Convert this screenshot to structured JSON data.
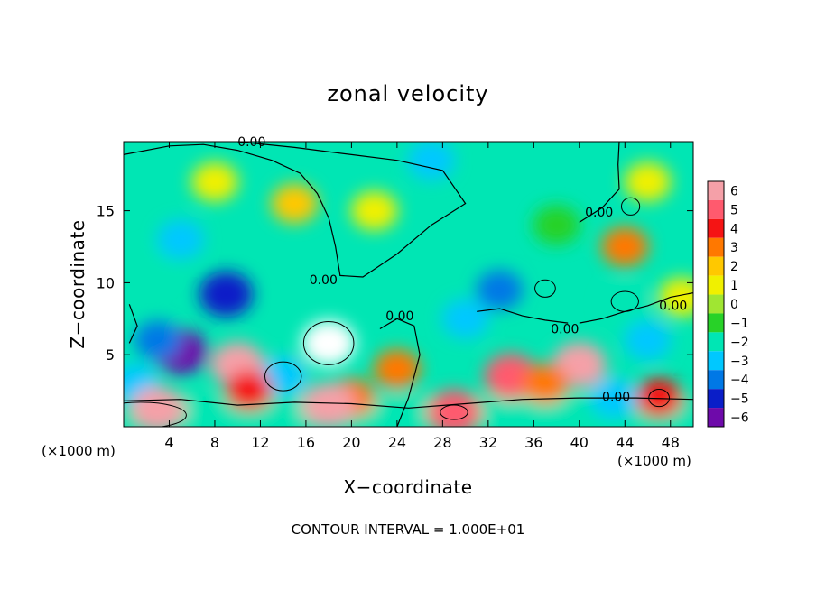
{
  "chart_data": {
    "type": "heatmap",
    "title": "zonal velocity",
    "xlabel": "X−coordinate",
    "ylabel": "Z−coordinate",
    "x_unit_left": "(×1000 m)",
    "x_unit_right": "(×1000 m)",
    "x_range": [
      0,
      50
    ],
    "y_range": [
      0,
      19.8
    ],
    "x_ticks": [
      4,
      8,
      12,
      16,
      20,
      24,
      28,
      32,
      36,
      40,
      44,
      48
    ],
    "x_tick_labels": [
      "4",
      "8",
      "12",
      "16",
      "20",
      "24",
      "28",
      "32",
      "36",
      "40",
      "44",
      "48"
    ],
    "y_ticks": [
      5,
      10,
      15
    ],
    "y_tick_labels": [
      "5",
      "10",
      "15"
    ],
    "colorbar": {
      "levels": [
        6,
        5,
        4,
        3,
        2,
        1,
        0,
        -1,
        -2,
        -3,
        -4,
        -5,
        -6
      ],
      "labels": [
        "6",
        "5",
        "4",
        "3",
        "2",
        "1",
        "0",
        "−1",
        "−2",
        "−3",
        "−4",
        "−5",
        "−6"
      ],
      "colors": [
        "#f5a0a8",
        "#ff5a6e",
        "#f51414",
        "#ff7800",
        "#ffc800",
        "#f0f000",
        "#a0e632",
        "#28d228",
        "#00e6b4",
        "#00c8ff",
        "#0078e6",
        "#0a1ec8",
        "#6e0aaa"
      ]
    },
    "contour_labels": [
      "0.00",
      "0.00",
      "0.00",
      "0.00",
      "0.00",
      "0.00",
      "0.00"
    ],
    "blobs": [
      {
        "x": 18,
        "z": 5.8,
        "v": -7
      },
      {
        "x": 14,
        "z": 3.5,
        "v": -3
      },
      {
        "x": 10,
        "z": 4.3,
        "v": 6
      },
      {
        "x": 11,
        "z": 2.5,
        "v": 4
      },
      {
        "x": 9,
        "z": 9.2,
        "v": -5
      },
      {
        "x": 5,
        "z": 5.2,
        "v": -6
      },
      {
        "x": 3,
        "z": 6.0,
        "v": -4
      },
      {
        "x": 5,
        "z": 13,
        "v": -3
      },
      {
        "x": 2,
        "z": 11,
        "v": -2
      },
      {
        "x": 15,
        "z": 15.5,
        "v": 1.5
      },
      {
        "x": 22,
        "z": 15,
        "v": 1
      },
      {
        "x": 27,
        "z": 18.5,
        "v": -3
      },
      {
        "x": 24,
        "z": 4,
        "v": 3
      },
      {
        "x": 20,
        "z": 2,
        "v": 3
      },
      {
        "x": 33,
        "z": 9.5,
        "v": -4
      },
      {
        "x": 30,
        "z": 7.5,
        "v": -3
      },
      {
        "x": 40,
        "z": 4.3,
        "v": 6
      },
      {
        "x": 34,
        "z": 3.5,
        "v": 5
      },
      {
        "x": 37,
        "z": 3,
        "v": 3
      },
      {
        "x": 44,
        "z": 8.5,
        "v": -2
      },
      {
        "x": 44,
        "z": 12.5,
        "v": 3
      },
      {
        "x": 49,
        "z": 9,
        "v": 1
      },
      {
        "x": 46,
        "z": 6,
        "v": -3
      },
      {
        "x": 47,
        "z": 2,
        "v": 4
      },
      {
        "x": 43,
        "z": 2,
        "v": -3
      },
      {
        "x": 1,
        "z": 3,
        "v": -3
      },
      {
        "x": 3,
        "z": 1.2,
        "v": 6
      },
      {
        "x": 29,
        "z": 1,
        "v": 5
      },
      {
        "x": 18,
        "z": 1.5,
        "v": 6
      },
      {
        "x": 38,
        "z": 14,
        "v": -1
      },
      {
        "x": 8,
        "z": 17,
        "v": 0.8
      },
      {
        "x": 46,
        "z": 17,
        "v": 0.5
      }
    ],
    "bottom_band_value": -2.5,
    "footer": "CONTOUR INTERVAL = 1.000E+01"
  }
}
